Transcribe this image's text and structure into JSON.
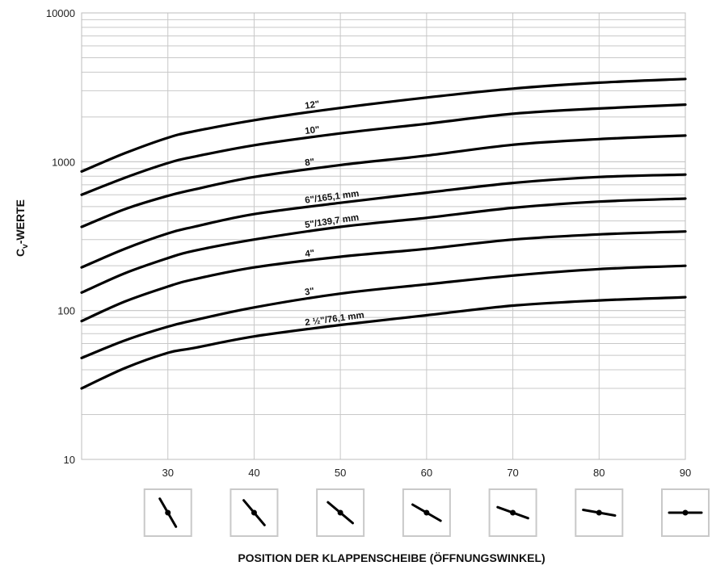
{
  "chart_data": {
    "type": "line",
    "ylabel_main": "C",
    "ylabel_sub": "v",
    "ylabel_rest": "-WERTE",
    "xlabel": "POSITION DER KLAPPENSCHEIBE (ÖFFNUNGSWINKEL)",
    "y_scale": "log",
    "ylim": [
      10,
      10000
    ],
    "xlim": [
      20,
      90
    ],
    "x_ticks": [
      30,
      40,
      50,
      60,
      70,
      80,
      90
    ],
    "x_tick_labels": [
      "30",
      "40",
      "50",
      "60",
      "70",
      "80",
      "90"
    ],
    "y_ticks": [
      10,
      100,
      1000,
      10000
    ],
    "y_tick_labels": [
      "10",
      "100",
      "1000",
      "10000"
    ],
    "grid": true,
    "legend": "none",
    "disc_position_angles": [
      30,
      40,
      50,
      60,
      70,
      80,
      90
    ],
    "series": [
      {
        "name": "12\"",
        "label_at_x": 46,
        "x": [
          20,
          25,
          30,
          33,
          40,
          50,
          60,
          70,
          80,
          90
        ],
        "y": [
          860,
          1140,
          1450,
          1600,
          1900,
          2300,
          2700,
          3100,
          3400,
          3600
        ]
      },
      {
        "name": "10\"",
        "label_at_x": 46,
        "x": [
          20,
          25,
          30,
          33,
          40,
          50,
          60,
          70,
          80,
          90
        ],
        "y": [
          600,
          780,
          980,
          1080,
          1290,
          1550,
          1800,
          2100,
          2280,
          2420
        ]
      },
      {
        "name": "8\"",
        "label_at_x": 46,
        "x": [
          20,
          25,
          30,
          33,
          40,
          50,
          60,
          70,
          80,
          90
        ],
        "y": [
          365,
          480,
          590,
          650,
          790,
          950,
          1100,
          1300,
          1420,
          1500
        ]
      },
      {
        "name": "6\"/165,1 mm",
        "label_at_x": 46,
        "x": [
          20,
          25,
          30,
          33,
          40,
          50,
          60,
          70,
          80,
          90
        ],
        "y": [
          195,
          260,
          330,
          365,
          445,
          530,
          620,
          720,
          790,
          820
        ]
      },
      {
        "name": "5\"/139,7 mm",
        "label_at_x": 46,
        "x": [
          20,
          25,
          30,
          33,
          40,
          50,
          60,
          70,
          80,
          90
        ],
        "y": [
          132,
          178,
          225,
          252,
          300,
          365,
          420,
          490,
          540,
          565
        ]
      },
      {
        "name": "4\"",
        "label_at_x": 46,
        "x": [
          20,
          25,
          30,
          33,
          40,
          50,
          60,
          70,
          80,
          90
        ],
        "y": [
          85,
          115,
          145,
          162,
          195,
          230,
          260,
          300,
          325,
          340
        ]
      },
      {
        "name": "3\"",
        "label_at_x": 46,
        "x": [
          20,
          25,
          30,
          33,
          40,
          50,
          60,
          70,
          80,
          90
        ],
        "y": [
          48,
          63,
          78,
          86,
          105,
          130,
          150,
          172,
          190,
          200
        ]
      },
      {
        "name": "2 ½\"/76,1 mm",
        "label_at_x": 46,
        "x": [
          20,
          25,
          30,
          33,
          40,
          50,
          60,
          70,
          80,
          90
        ],
        "y": [
          30,
          41,
          52,
          56,
          67,
          80,
          93,
          108,
          117,
          123
        ]
      }
    ]
  }
}
